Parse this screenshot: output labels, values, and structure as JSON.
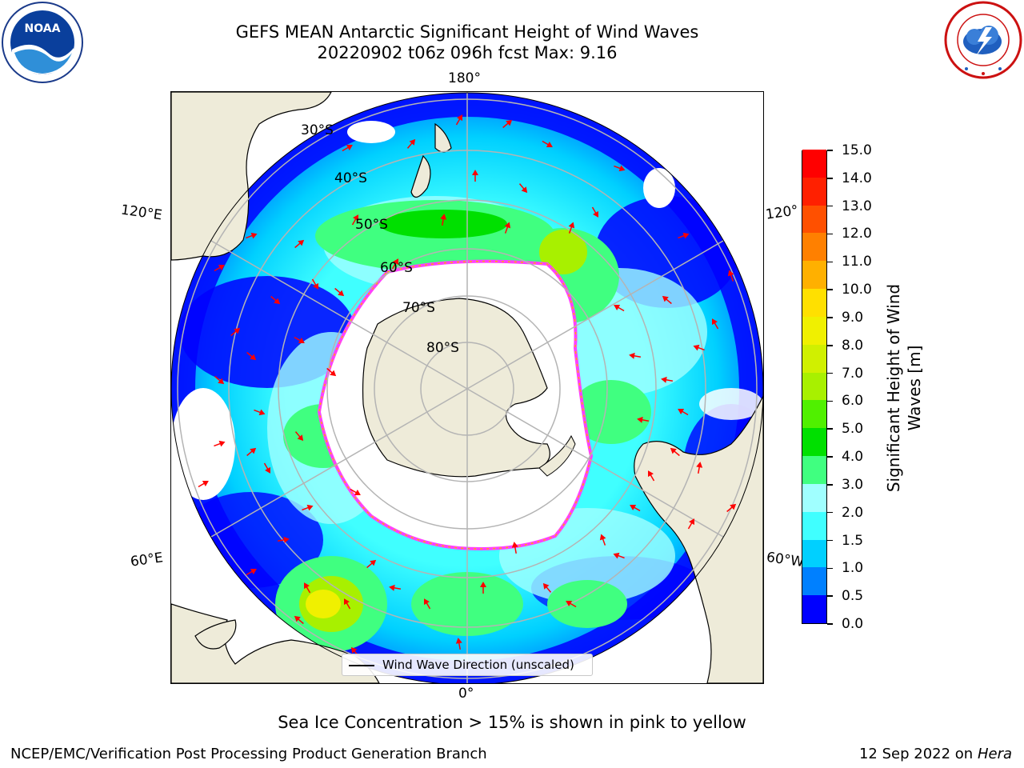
{
  "title": {
    "line1": "GEFS MEAN Antarctic Significant Height of Wind Waves",
    "line2": "20220902 t06z 096h fcst   Max: 9.16"
  },
  "logos": {
    "left": "NOAA",
    "right": "NATIONAL WEATHER SERVICE"
  },
  "map": {
    "lon_labels": {
      "top": "180°",
      "bottom": "0°",
      "left_upper": "120°E",
      "left_lower": "60°E",
      "right_upper": "120°",
      "right_lower": "60°W"
    },
    "lat_labels": [
      "30°S",
      "40°S",
      "50°S",
      "60°S",
      "70°S",
      "80°S"
    ],
    "legend": "Wind Wave Direction (unscaled)",
    "colors": {
      "land": "#eeebd9",
      "ice": "#ffffff",
      "graticule": "#b4b4b4",
      "arrow": "#ff0000"
    }
  },
  "colorbar": {
    "label": "Significant Height of Wind Waves [m]",
    "label_line1": "Significant Height of Wind",
    "label_line2": "Waves [m]",
    "ticks": [
      "0.0",
      "0.5",
      "1.0",
      "1.5",
      "2.0",
      "3.0",
      "4.0",
      "5.0",
      "6.0",
      "7.0",
      "8.0",
      "9.0",
      "10.0",
      "11.0",
      "12.0",
      "13.0",
      "14.0",
      "15.0"
    ],
    "colors": [
      "#0000ff",
      "#0080ff",
      "#00d0ff",
      "#40ffff",
      "#a0ffff",
      "#40ff80",
      "#00e000",
      "#50f000",
      "#a8f000",
      "#d0f000",
      "#f0f000",
      "#ffe000",
      "#ffb000",
      "#ff8000",
      "#ff5000",
      "#ff2000",
      "#ff0000"
    ]
  },
  "footer": {
    "note": "Sea Ice Concentration > 15% is shown in pink to yellow",
    "left": "NCEP/EMC/Verification Post Processing Product Generation Branch",
    "right_date": "12 Sep 2022 on",
    "right_machine": "Hera"
  }
}
